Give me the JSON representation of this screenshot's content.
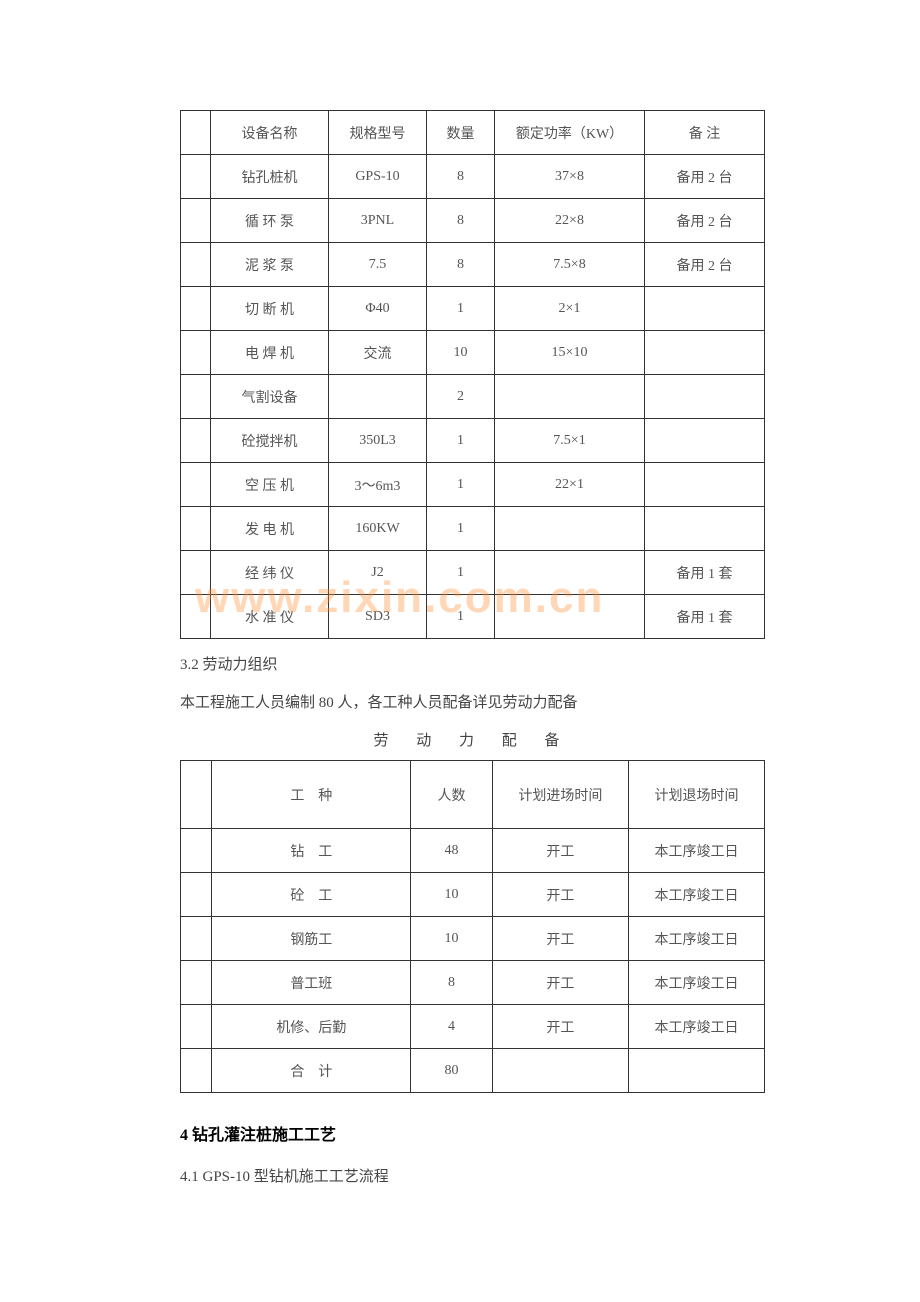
{
  "watermark": "www.zixin.com.cn",
  "equipment_table": {
    "headers": [
      "",
      "设备名称",
      "规格型号",
      "数量",
      "额定功率（KW）",
      "备 注"
    ],
    "rows": [
      [
        "",
        "钻孔桩机",
        "GPS-10",
        "8",
        "37×8",
        "备用 2 台"
      ],
      [
        "",
        "循 环 泵",
        "3PNL",
        "8",
        "22×8",
        "备用 2 台"
      ],
      [
        "",
        "泥 浆 泵",
        "7.5",
        "8",
        "7.5×8",
        "备用 2 台"
      ],
      [
        "",
        "切 断 机",
        "Φ40",
        "1",
        "2×1",
        ""
      ],
      [
        "",
        "电 焊 机",
        "交流",
        "10",
        "15×10",
        ""
      ],
      [
        "",
        "气割设备",
        "",
        "2",
        "",
        ""
      ],
      [
        "",
        "砼搅拌机",
        "350L3",
        "1",
        "7.5×1",
        ""
      ],
      [
        "",
        "空 压 机",
        "3～6m3",
        "1",
        "22×1",
        ""
      ],
      [
        "",
        "发 电 机",
        "160KW",
        "1",
        "",
        ""
      ],
      [
        "",
        "经 纬 仪",
        "J2",
        "1",
        "",
        "备用 1 套"
      ],
      [
        "",
        "水 准 仪",
        "SD3",
        "1",
        "",
        "备用 1 套"
      ]
    ]
  },
  "section_3_2": {
    "title": "3.2 劳动力组织",
    "text": "本工程施工人员编制 80 人，各工种人员配备详见劳动力配备"
  },
  "labor_table": {
    "title": "劳 动 力 配 备",
    "headers": [
      "",
      "工　种",
      "人数",
      "计划进场时间",
      "计划退场时间"
    ],
    "rows": [
      [
        "",
        "钻　工",
        "48",
        "开工",
        "本工序竣工日"
      ],
      [
        "",
        "砼　工",
        "10",
        "开工",
        "本工序竣工日"
      ],
      [
        "",
        "钢筋工",
        "10",
        "开工",
        "本工序竣工日"
      ],
      [
        "",
        "普工班",
        "8",
        "开工",
        "本工序竣工日"
      ],
      [
        "",
        "机修、后勤",
        "4",
        "开工",
        "本工序竣工日"
      ],
      [
        "",
        "合　计",
        "80",
        "",
        ""
      ]
    ]
  },
  "section_4": {
    "title": "4  钻孔灌注桩施工工艺",
    "sub": "4.1  GPS-10 型钻机施工工艺流程"
  }
}
